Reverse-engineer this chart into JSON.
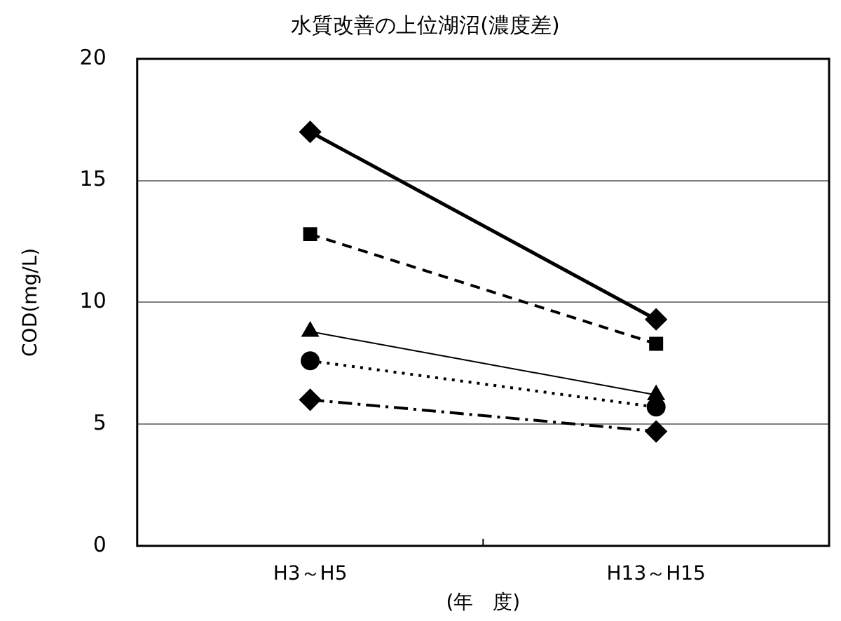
{
  "chart_data": {
    "type": "line",
    "title": "水質改善の上位湖沼(濃度差)",
    "xlabel": "(年　度)",
    "ylabel": "COD(mg/L)",
    "categories": [
      "H3～H5",
      "H13～H15"
    ],
    "ylim": [
      0,
      20
    ],
    "yticks": [
      0,
      5,
      10,
      15,
      20
    ],
    "grid": "y",
    "legend": false,
    "series": [
      {
        "color": "#000000",
        "values": [
          17.0,
          9.3
        ],
        "marker": "diamond",
        "line_style": "solid"
      },
      {
        "color": "#000000",
        "values": [
          12.8,
          8.3
        ],
        "marker": "square",
        "line_style": "dashed"
      },
      {
        "color": "#000000",
        "values": [
          8.8,
          6.2
        ],
        "marker": "triangle",
        "line_style": "solid"
      },
      {
        "color": "#000000",
        "values": [
          7.6,
          5.7
        ],
        "marker": "circle",
        "line_style": "dotted"
      },
      {
        "color": "#000000",
        "values": [
          6.0,
          4.7
        ],
        "marker": "diamond",
        "line_style": "dashdot"
      }
    ]
  }
}
